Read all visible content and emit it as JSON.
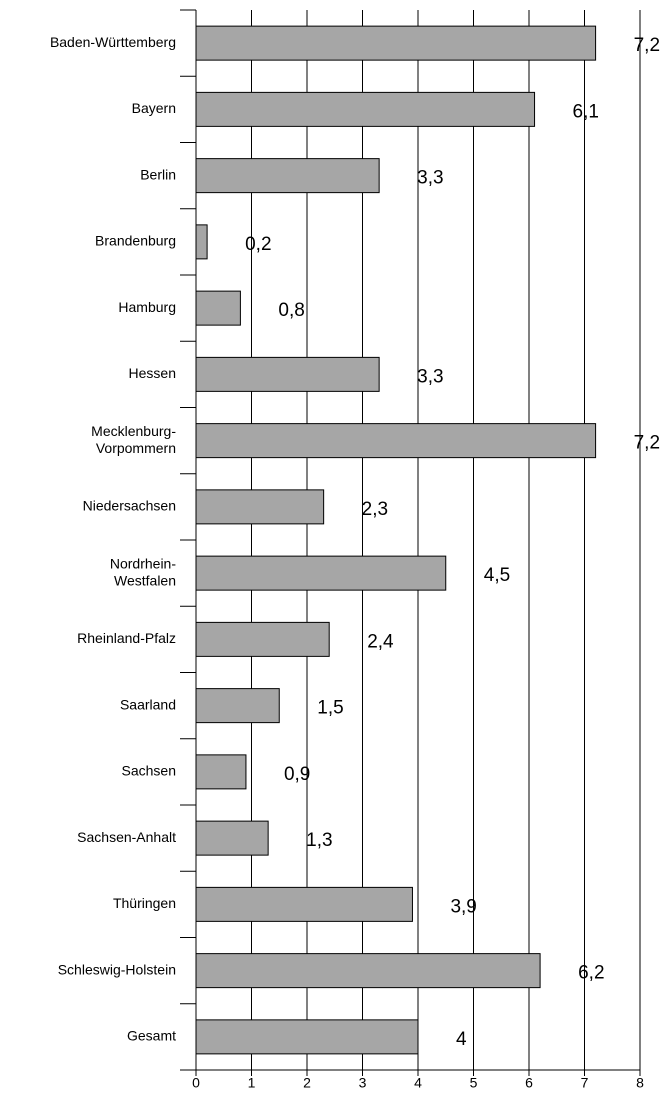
{
  "chart_data": {
    "type": "bar",
    "orientation": "horizontal",
    "categories": [
      "Baden-Württemberg",
      "Bayern",
      "Berlin",
      "Brandenburg",
      "Hamburg",
      "Hessen",
      "Mecklenburg-\nVorpommern",
      "Niedersachsen",
      "Nordrhein-\nWestfalen",
      "Rheinland-Pfalz",
      "Saarland",
      "Sachsen",
      "Sachsen-Anhalt",
      "Thüringen",
      "Schleswig-Holstein",
      "Gesamt"
    ],
    "values": [
      7.2,
      6.1,
      3.3,
      0.2,
      0.8,
      3.3,
      7.2,
      2.3,
      4.5,
      2.4,
      1.5,
      0.9,
      1.3,
      3.9,
      6.2,
      4
    ],
    "value_labels": [
      "7,2",
      "6,1",
      "3,3",
      "0,2",
      "0,8",
      "3,3",
      "7,2",
      "2,3",
      "4,5",
      "2,4",
      "1,5",
      "0,9",
      "1,3",
      "3,9",
      "6,2",
      "4"
    ],
    "color": "#a6a6a6",
    "xlim": [
      0,
      8
    ],
    "xticks": [
      0,
      1,
      2,
      3,
      4,
      5,
      6,
      7,
      8
    ],
    "grid": true
  }
}
